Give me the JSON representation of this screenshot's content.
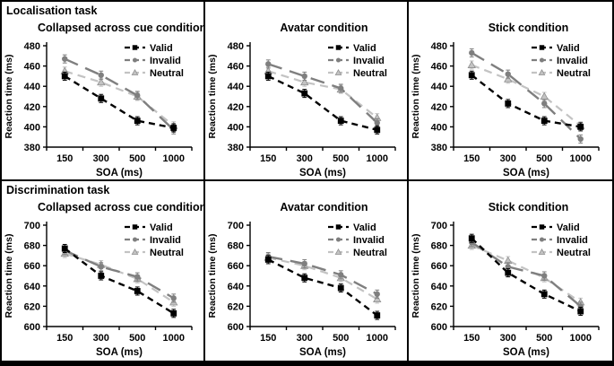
{
  "tasks": [
    "Localisation task",
    "Discrimination task"
  ],
  "legend_labels": [
    "Valid",
    "Invalid",
    "Neutral"
  ],
  "colors": {
    "valid": "#000000",
    "invalid": "#7f7f7f",
    "neutral": "#c3c3c3",
    "neutral_edge": "#8f8f8f",
    "axis": "#000000",
    "background": "#ffffff",
    "border": "#000000"
  },
  "series_styles": {
    "Valid": {
      "color": "#000000",
      "dash": "7 5",
      "marker": "square",
      "width": 2.4
    },
    "Invalid": {
      "color": "#7f7f7f",
      "dash": "16 9",
      "marker": "circle",
      "width": 2.4
    },
    "Neutral": {
      "color": "#c3c3c3",
      "dash": "9 6",
      "marker": "triangle",
      "width": 2.2
    }
  },
  "chart_data": [
    {
      "type": "line",
      "title": "Collapsed across cue conditions",
      "task": "Localisation task",
      "xlabel": "SOA (ms)",
      "ylabel": "Reaction time (ms)",
      "categories": [
        "150",
        "300",
        "500",
        "1000"
      ],
      "ylim": [
        380,
        480
      ],
      "yticks": [
        380,
        400,
        420,
        440,
        460,
        480
      ],
      "error_bar": 4,
      "legend_position": "top-right",
      "series": [
        {
          "name": "Valid",
          "values": [
            450,
            428,
            406,
            399
          ]
        },
        {
          "name": "Invalid",
          "values": [
            467,
            451,
            431,
            397
          ]
        },
        {
          "name": "Neutral",
          "values": [
            455,
            444,
            430,
            401
          ]
        }
      ]
    },
    {
      "type": "line",
      "title": "Avatar condition",
      "task": "Localisation task",
      "xlabel": "SOA (ms)",
      "ylabel": "Reaction time (ms)",
      "categories": [
        "150",
        "300",
        "500",
        "1000"
      ],
      "ylim": [
        380,
        480
      ],
      "yticks": [
        380,
        400,
        420,
        440,
        460,
        480
      ],
      "error_bar": 4,
      "legend_position": "top-right",
      "series": [
        {
          "name": "Valid",
          "values": [
            450,
            433,
            406,
            397
          ]
        },
        {
          "name": "Invalid",
          "values": [
            462,
            450,
            438,
            404
          ]
        },
        {
          "name": "Neutral",
          "values": [
            455,
            444,
            437,
            409
          ]
        }
      ]
    },
    {
      "type": "line",
      "title": "Stick condition",
      "task": "Localisation task",
      "xlabel": "SOA (ms)",
      "ylabel": "Reaction time (ms)",
      "categories": [
        "150",
        "300",
        "500",
        "1000"
      ],
      "ylim": [
        380,
        480
      ],
      "yticks": [
        380,
        400,
        420,
        440,
        460,
        480
      ],
      "error_bar": 4,
      "legend_position": "top-right",
      "series": [
        {
          "name": "Valid",
          "values": [
            451,
            423,
            406,
            400
          ]
        },
        {
          "name": "Invalid",
          "values": [
            473,
            452,
            423,
            388
          ]
        },
        {
          "name": "Neutral",
          "values": [
            461,
            447,
            430,
            401
          ]
        }
      ]
    },
    {
      "type": "line",
      "title": "Collapsed across cue conditions",
      "task": "Discrimination task",
      "xlabel": "SOA (ms)",
      "ylabel": "Reaction time (ms)",
      "categories": [
        "150",
        "300",
        "500",
        "1000"
      ],
      "ylim": [
        600,
        700
      ],
      "yticks": [
        600,
        620,
        640,
        660,
        680,
        700
      ],
      "error_bar": 4,
      "legend_position": "top-right",
      "series": [
        {
          "name": "Valid",
          "values": [
            677,
            650,
            635,
            613
          ]
        },
        {
          "name": "Invalid",
          "values": [
            675,
            659,
            649,
            628
          ]
        },
        {
          "name": "Neutral",
          "values": [
            672,
            661,
            647,
            624
          ]
        }
      ]
    },
    {
      "type": "line",
      "title": "Avatar condition",
      "task": "Discrimination task",
      "xlabel": "SOA (ms)",
      "ylabel": "Reaction time (ms)",
      "categories": [
        "150",
        "300",
        "500",
        "1000"
      ],
      "ylim": [
        600,
        700
      ],
      "yticks": [
        600,
        620,
        640,
        660,
        680,
        700
      ],
      "error_bar": 4,
      "legend_position": "top-right",
      "series": [
        {
          "name": "Valid",
          "values": [
            666,
            648,
            638,
            611
          ]
        },
        {
          "name": "Invalid",
          "values": [
            669,
            662,
            651,
            632
          ]
        },
        {
          "name": "Neutral",
          "values": [
            668,
            660,
            648,
            627
          ]
        }
      ]
    },
    {
      "type": "line",
      "title": "Stick condition",
      "task": "Discrimination task",
      "xlabel": "SOA (ms)",
      "ylabel": "Reaction time (ms)",
      "categories": [
        "150",
        "300",
        "500",
        "1000"
      ],
      "ylim": [
        600,
        700
      ],
      "yticks": [
        600,
        620,
        640,
        660,
        680,
        700
      ],
      "error_bar": 4,
      "legend_position": "top-right",
      "series": [
        {
          "name": "Valid",
          "values": [
            687,
            653,
            632,
            615
          ]
        },
        {
          "name": "Invalid",
          "values": [
            683,
            659,
            650,
            620
          ]
        },
        {
          "name": "Neutral",
          "values": [
            680,
            665,
            648,
            624
          ]
        }
      ]
    }
  ]
}
